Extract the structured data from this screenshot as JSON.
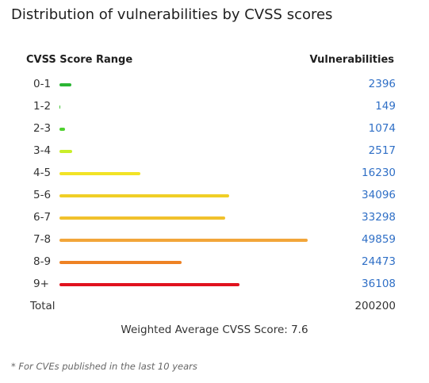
{
  "chart_data": {
    "type": "bar",
    "title": "Distribution of vulnerabilities by CVSS scores",
    "column_headers": {
      "range": "CVSS Score Range",
      "count": "Vulnerabilities"
    },
    "categories": [
      "0-1",
      "1-2",
      "2-3",
      "3-4",
      "4-5",
      "5-6",
      "6-7",
      "7-8",
      "8-9",
      "9+"
    ],
    "values": [
      2396,
      149,
      1074,
      2517,
      16230,
      34096,
      33298,
      49859,
      24473,
      36108
    ],
    "colors": [
      "#2bb534",
      "#44c437",
      "#4fd12f",
      "#c9ee2a",
      "#f2e326",
      "#f0cf26",
      "#f1c12c",
      "#f2a63a",
      "#ee8224",
      "#e0121e"
    ],
    "total_label": "Total",
    "total": 200200,
    "weighted_average_label": "Weighted Average CVSS Score: 7.6",
    "weighted_average": 7.6,
    "footnote": "* For CVEs published in the last 10 years"
  }
}
